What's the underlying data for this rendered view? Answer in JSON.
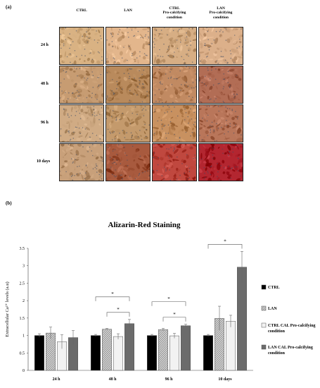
{
  "panel_a": {
    "label": "(a)",
    "columns": [
      "CTRL",
      "LAN",
      "CTRL\nPro-calcifying\ncondition",
      "LAN\nPro-calcifying\ncondition"
    ],
    "rows": [
      "24 h",
      "48 h",
      "96 h",
      "10 days"
    ],
    "stain_colors": {
      "24 h": [
        "#d9b283",
        "#e3b68c",
        "#d7ae84",
        "#dcb08a"
      ],
      "48 h": [
        "#c79c72",
        "#b98a5c",
        "#c18a62",
        "#b26d55"
      ],
      "96 h": [
        "#d0ab84",
        "#c49a6c",
        "#c89160",
        "#b9765a"
      ],
      "10 days": [
        "#c8a07a",
        "#a85a3e",
        "#c0483f",
        "#b32630"
      ]
    }
  },
  "panel_b": {
    "label": "(b)"
  },
  "chart_data": {
    "type": "bar",
    "title": "Alizarin-Red Staining",
    "ylabel": "Extracellular Ca²⁺ levels (a.u)",
    "xlabel": "",
    "ylim": [
      0,
      3.5
    ],
    "yticks": [
      "0",
      "0.5",
      "1",
      "1.5",
      "2",
      "2.5",
      "3",
      "3.5"
    ],
    "categories": [
      "24 h",
      "48 h",
      "96 h",
      "10 days"
    ],
    "series": [
      {
        "name": "CTRL",
        "values": [
          1.0,
          1.0,
          1.0,
          1.0
        ],
        "errors": [
          0.05,
          0.03,
          0.03,
          0.03
        ],
        "color": "#000000",
        "pattern": "solid"
      },
      {
        "name": "LAN",
        "values": [
          1.07,
          1.18,
          1.17,
          1.49
        ],
        "errors": [
          0.17,
          0.02,
          0.03,
          0.35
        ],
        "color": "#bdbdbd",
        "pattern": "hatch"
      },
      {
        "name": "CTRL CAL  Pro-calcifying condition",
        "values": [
          0.82,
          0.97,
          0.99,
          1.41
        ],
        "errors": [
          0.2,
          0.08,
          0.07,
          0.17
        ],
        "color": "#f2f2f2",
        "pattern": "light"
      },
      {
        "name": "LAN CAL  Pro-calcifying condition",
        "values": [
          0.94,
          1.34,
          1.28,
          2.96
        ],
        "errors": [
          0.2,
          0.12,
          0.04,
          0.45
        ],
        "color": "#6b6b6b",
        "pattern": "solid"
      }
    ],
    "significance": [
      {
        "category": "48 h",
        "pairs": [
          [
            0,
            3
          ],
          [
            1,
            3
          ]
        ],
        "label": "*"
      },
      {
        "category": "96 h",
        "pairs": [
          [
            0,
            3
          ],
          [
            1,
            3
          ]
        ],
        "label": "*"
      },
      {
        "category": "10 days",
        "pairs": [
          [
            0,
            3
          ]
        ],
        "label": "*"
      }
    ],
    "legend_position": "right",
    "legend_labels": [
      "CTRL",
      "LAN",
      "CTRL CAL  Pro-calcifying",
      "LAN CAL  Pro-calcifying"
    ],
    "legend_sublabels": [
      "",
      "",
      "condition",
      "condition"
    ]
  }
}
